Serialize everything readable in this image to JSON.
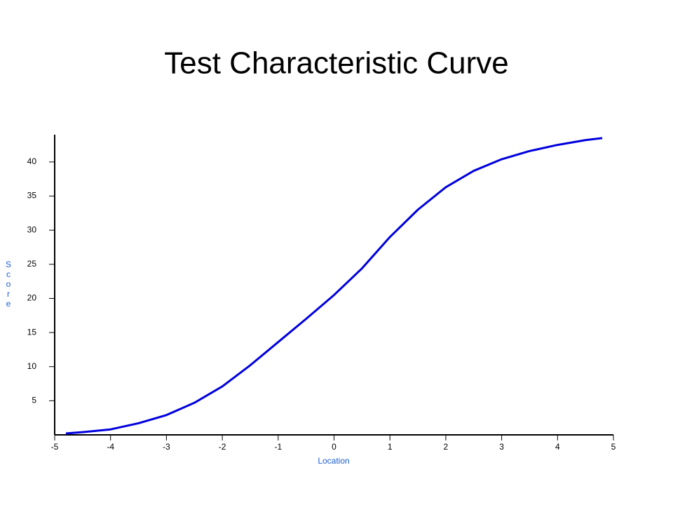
{
  "chart_data": {
    "type": "line",
    "title": "Test Characteristic Curve",
    "x_label": "Location",
    "y_label": "Score",
    "series": [
      {
        "name": "Score",
        "color": "#0000dd",
        "x": [
          -4.8,
          -4.5,
          -4,
          -3.5,
          -3,
          -2.5,
          -2,
          -1.5,
          -1,
          -0.5,
          0,
          0.5,
          1,
          1.5,
          2,
          2.5,
          3,
          3.5,
          4,
          4.5,
          4.8
        ],
        "values": [
          0.2,
          0.4,
          0.8,
          1.7,
          2.9,
          4.7,
          7.1,
          10.2,
          13.6,
          17.0,
          20.5,
          24.4,
          29.0,
          33.0,
          36.3,
          38.7,
          40.4,
          41.6,
          42.5,
          43.2,
          43.5
        ]
      }
    ],
    "xlim": [
      -5,
      5
    ],
    "xticks": [
      -5,
      -4,
      -3,
      -2,
      -1,
      0,
      1,
      2,
      3,
      4,
      5
    ],
    "ylim": [
      0,
      44
    ],
    "yticks": [
      5,
      10,
      15,
      20,
      25,
      30,
      35,
      40
    ]
  }
}
